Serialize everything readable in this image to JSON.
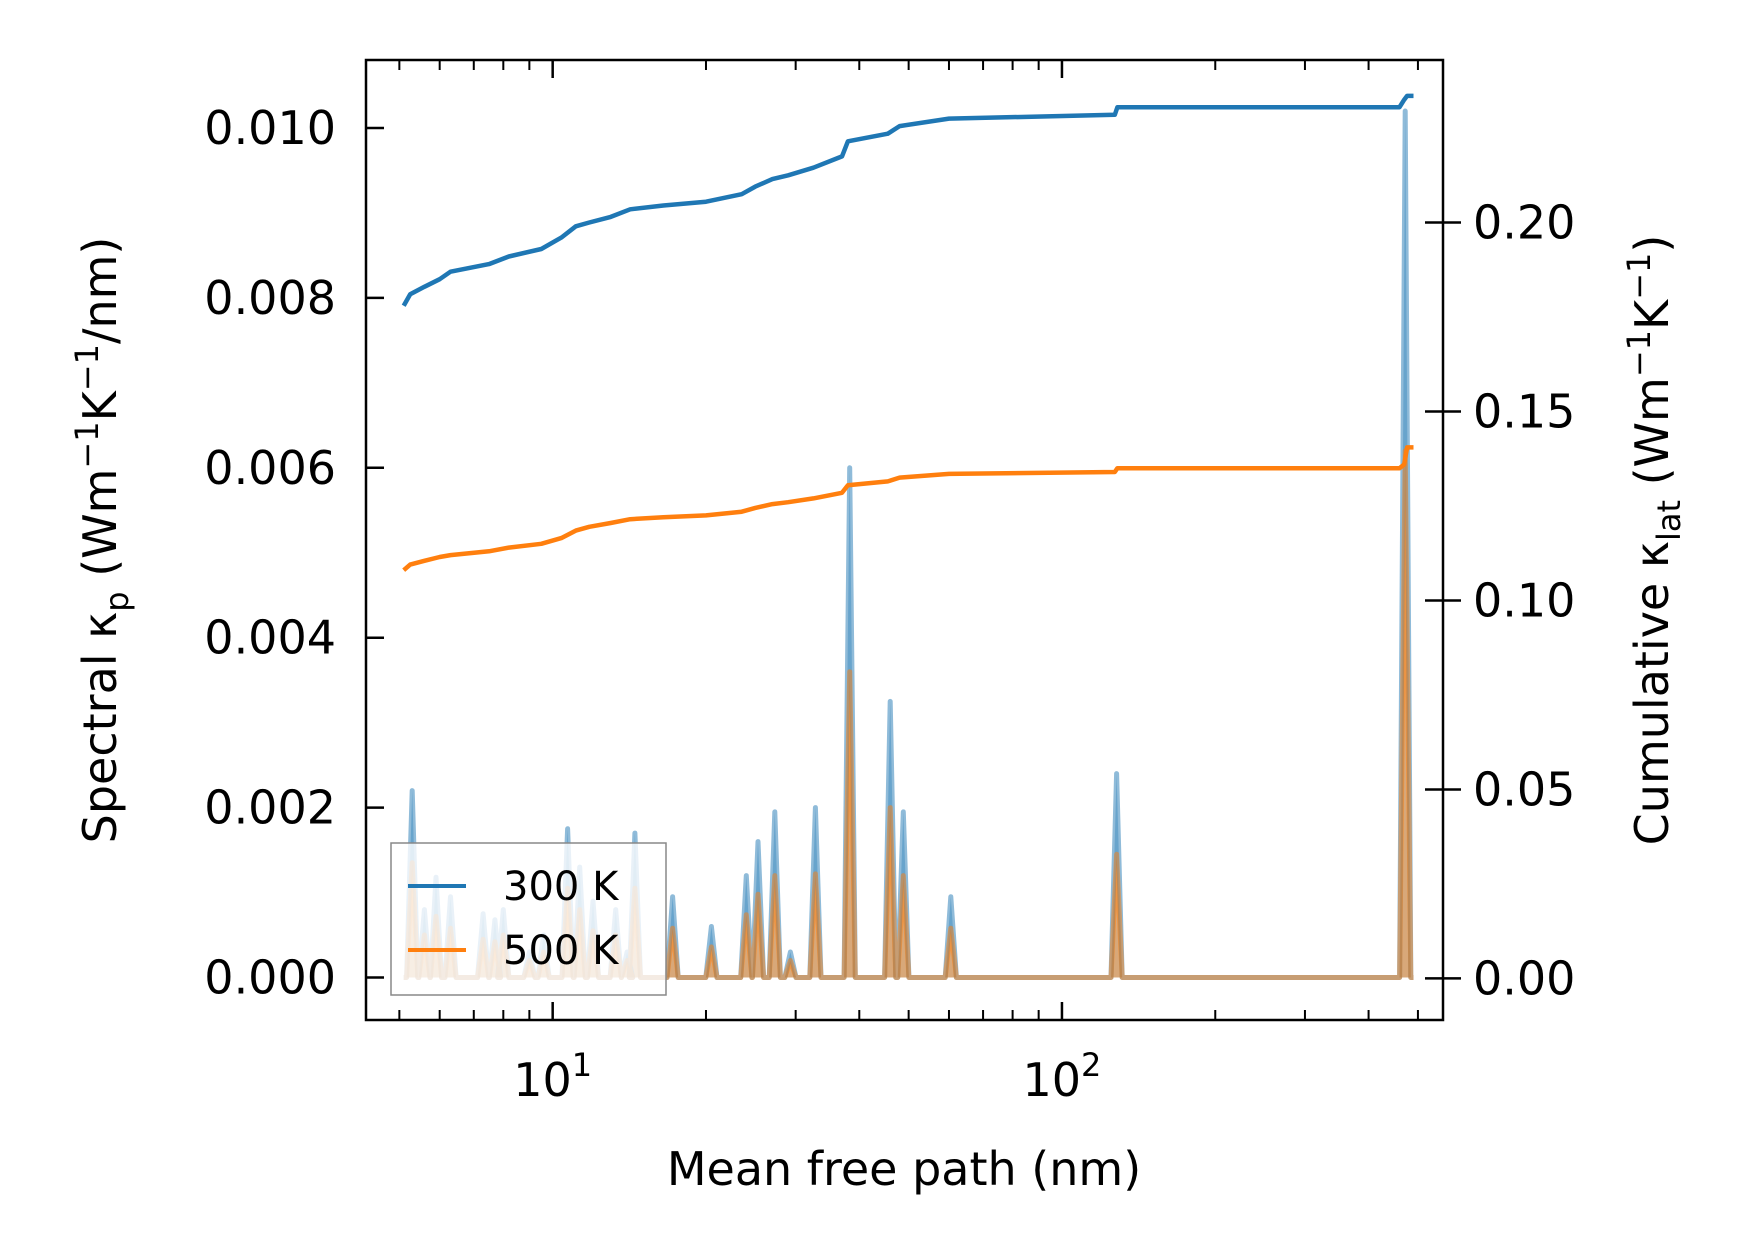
{
  "chart_data": {
    "type": "line",
    "title": "",
    "xlabel": "Mean free path (nm)",
    "ylabel_left": "Spectral κ_p (Wm^-1K^-1/nm)",
    "ylabel_right": "Cumulative κ_lat (Wm^-1K^-1)",
    "xscale": "log",
    "xlim": [
      4.3,
      560
    ],
    "ylim_left": [
      -0.0005,
      0.0108
    ],
    "ylim_right": [
      -0.011,
      0.243
    ],
    "x_ticks": [
      {
        "base": "10",
        "exp": "1",
        "value": 10
      },
      {
        "base": "10",
        "exp": "2",
        "value": 100
      }
    ],
    "y_ticks_left": [
      "0.000",
      "0.002",
      "0.004",
      "0.006",
      "0.008",
      "0.010"
    ],
    "y_ticks_right": [
      "0.00",
      "0.05",
      "0.10",
      "0.15",
      "0.20"
    ],
    "legend": {
      "position": "lower-left",
      "entries": [
        {
          "label": "300 K",
          "color": "#1f77b4"
        },
        {
          "label": "500 K",
          "color": "#ff7f0e"
        }
      ]
    },
    "series": [
      {
        "name": "300 K",
        "color": "#1f77b4",
        "spectral_peaks": [
          {
            "x": 5.3,
            "y": 0.0022
          },
          {
            "x": 5.6,
            "y": 0.0008
          },
          {
            "x": 5.9,
            "y": 0.00118
          },
          {
            "x": 6.3,
            "y": 0.00095
          },
          {
            "x": 7.3,
            "y": 0.00075
          },
          {
            "x": 7.7,
            "y": 0.00068
          },
          {
            "x": 8.0,
            "y": 0.0008
          },
          {
            "x": 9.0,
            "y": 0.0003
          },
          {
            "x": 9.6,
            "y": 0.0005
          },
          {
            "x": 10.7,
            "y": 0.00175
          },
          {
            "x": 11.3,
            "y": 0.0013
          },
          {
            "x": 12.0,
            "y": 0.0009
          },
          {
            "x": 13.3,
            "y": 0.0008
          },
          {
            "x": 14.0,
            "y": 0.0003
          },
          {
            "x": 14.5,
            "y": 0.0017
          },
          {
            "x": 17.2,
            "y": 0.00095
          },
          {
            "x": 20.5,
            "y": 0.0006
          },
          {
            "x": 24.0,
            "y": 0.0012
          },
          {
            "x": 25.3,
            "y": 0.0016
          },
          {
            "x": 27.3,
            "y": 0.00195
          },
          {
            "x": 29.3,
            "y": 0.0003
          },
          {
            "x": 32.8,
            "y": 0.002
          },
          {
            "x": 38.3,
            "y": 0.006
          },
          {
            "x": 46.0,
            "y": 0.00325
          },
          {
            "x": 48.8,
            "y": 0.00195
          },
          {
            "x": 60.5,
            "y": 0.00095
          },
          {
            "x": 128.0,
            "y": 0.0024
          },
          {
            "x": 472.0,
            "y": 0.0102
          }
        ],
        "cumulative": [
          [
            5.1,
            0.178
          ],
          [
            5.25,
            0.181
          ],
          [
            5.6,
            0.183
          ],
          [
            6.0,
            0.185
          ],
          [
            6.3,
            0.187
          ],
          [
            7.5,
            0.189
          ],
          [
            8.2,
            0.191
          ],
          [
            9.5,
            0.193
          ],
          [
            10.4,
            0.196
          ],
          [
            11.1,
            0.199
          ],
          [
            11.8,
            0.2
          ],
          [
            13.0,
            0.2015
          ],
          [
            14.2,
            0.2035
          ],
          [
            16.5,
            0.2045
          ],
          [
            20.0,
            0.2055
          ],
          [
            23.5,
            0.2075
          ],
          [
            25.0,
            0.2095
          ],
          [
            27.0,
            0.2115
          ],
          [
            29.0,
            0.2125
          ],
          [
            32.5,
            0.2145
          ],
          [
            37.0,
            0.2175
          ],
          [
            38.0,
            0.2215
          ],
          [
            45.5,
            0.2235
          ],
          [
            48.0,
            0.2255
          ],
          [
            60.0,
            0.2275
          ],
          [
            127.0,
            0.2285
          ],
          [
            128.5,
            0.2305
          ],
          [
            460.0,
            0.2305
          ],
          [
            470.0,
            0.2325
          ],
          [
            476.0,
            0.2335
          ],
          [
            490.0,
            0.2335
          ]
        ]
      },
      {
        "name": "500 K",
        "color": "#ff7f0e",
        "spectral_peaks": [
          {
            "x": 5.3,
            "y": 0.00135
          },
          {
            "x": 5.6,
            "y": 0.0005
          },
          {
            "x": 5.9,
            "y": 0.00072
          },
          {
            "x": 6.3,
            "y": 0.00058
          },
          {
            "x": 7.3,
            "y": 0.00045
          },
          {
            "x": 7.7,
            "y": 0.00042
          },
          {
            "x": 8.0,
            "y": 0.0005
          },
          {
            "x": 9.0,
            "y": 0.0002
          },
          {
            "x": 9.6,
            "y": 0.0003
          },
          {
            "x": 10.7,
            "y": 0.00105
          },
          {
            "x": 11.3,
            "y": 0.0008
          },
          {
            "x": 12.0,
            "y": 0.00055
          },
          {
            "x": 13.3,
            "y": 0.0005
          },
          {
            "x": 14.0,
            "y": 0.0002
          },
          {
            "x": 14.5,
            "y": 0.00105
          },
          {
            "x": 17.2,
            "y": 0.00058
          },
          {
            "x": 20.5,
            "y": 0.00036
          },
          {
            "x": 24.0,
            "y": 0.00074
          },
          {
            "x": 25.3,
            "y": 0.00098
          },
          {
            "x": 27.3,
            "y": 0.0012
          },
          {
            "x": 29.3,
            "y": 0.0002
          },
          {
            "x": 32.8,
            "y": 0.00122
          },
          {
            "x": 38.3,
            "y": 0.0036
          },
          {
            "x": 46.0,
            "y": 0.002
          },
          {
            "x": 48.8,
            "y": 0.0012
          },
          {
            "x": 60.5,
            "y": 0.00058
          },
          {
            "x": 128.0,
            "y": 0.00145
          },
          {
            "x": 472.0,
            "y": 0.0062
          }
        ],
        "cumulative": [
          [
            5.1,
            0.108
          ],
          [
            5.25,
            0.1095
          ],
          [
            5.6,
            0.1105
          ],
          [
            6.0,
            0.1115
          ],
          [
            6.3,
            0.112
          ],
          [
            7.5,
            0.113
          ],
          [
            8.2,
            0.114
          ],
          [
            9.5,
            0.115
          ],
          [
            10.4,
            0.1165
          ],
          [
            11.1,
            0.1185
          ],
          [
            11.8,
            0.1195
          ],
          [
            13.0,
            0.1205
          ],
          [
            14.2,
            0.1215
          ],
          [
            16.5,
            0.122
          ],
          [
            20.0,
            0.1225
          ],
          [
            23.5,
            0.1235
          ],
          [
            25.0,
            0.1245
          ],
          [
            27.0,
            0.1255
          ],
          [
            29.0,
            0.126
          ],
          [
            32.5,
            0.127
          ],
          [
            37.0,
            0.1285
          ],
          [
            38.0,
            0.1305
          ],
          [
            45.5,
            0.1315
          ],
          [
            48.0,
            0.1325
          ],
          [
            60.0,
            0.1335
          ],
          [
            127.0,
            0.134
          ],
          [
            128.5,
            0.135
          ],
          [
            460.0,
            0.135
          ],
          [
            470.0,
            0.136
          ],
          [
            476.0,
            0.1405
          ],
          [
            490.0,
            0.1405
          ]
        ]
      }
    ]
  }
}
